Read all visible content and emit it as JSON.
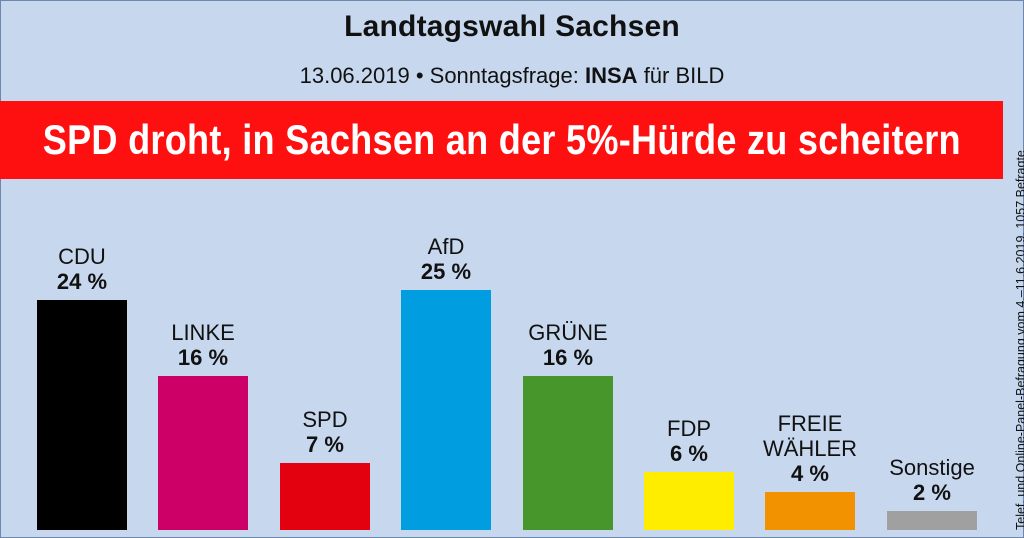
{
  "header": {
    "title": "Landtagswahl Sachsen",
    "subtitle_date": "13.06.2019 • Sonntagsfrage:",
    "subtitle_institute": "INSA",
    "subtitle_source": "für BILD"
  },
  "banner": {
    "text": "SPD droht, in Sachsen an der 5%-Hürde zu scheitern"
  },
  "side_note": "Telef. und Online-Panel-Befragung vom 4.–11.6.2019, 1057 Befragte",
  "chart_data": {
    "type": "bar",
    "title": "Landtagswahl Sachsen",
    "categories": [
      "CDU",
      "LINKE",
      "SPD",
      "AfD",
      "GRÜNE",
      "FDP",
      "FREIE WÄHLER",
      "Sonstige"
    ],
    "values": [
      24,
      16,
      7,
      25,
      16,
      6,
      4,
      2
    ],
    "value_labels": [
      "24 %",
      "16 %",
      "7 %",
      "25 %",
      "16 %",
      "6 %",
      "4 %",
      "2 %"
    ],
    "name_lines": [
      [
        "CDU"
      ],
      [
        "LINKE"
      ],
      [
        "SPD"
      ],
      [
        "AfD"
      ],
      [
        "GRÜNE"
      ],
      [
        "FDP"
      ],
      [
        "FREIE",
        "WÄHLER"
      ],
      [
        "Sonstige"
      ]
    ],
    "colors": [
      "#000000",
      "#cc0066",
      "#e3000f",
      "#009ee0",
      "#46962b",
      "#ffed00",
      "#f39200",
      "#a0a0a0"
    ],
    "unit": "%",
    "ylim": [
      0,
      25
    ],
    "grid": false,
    "legend": "none"
  }
}
